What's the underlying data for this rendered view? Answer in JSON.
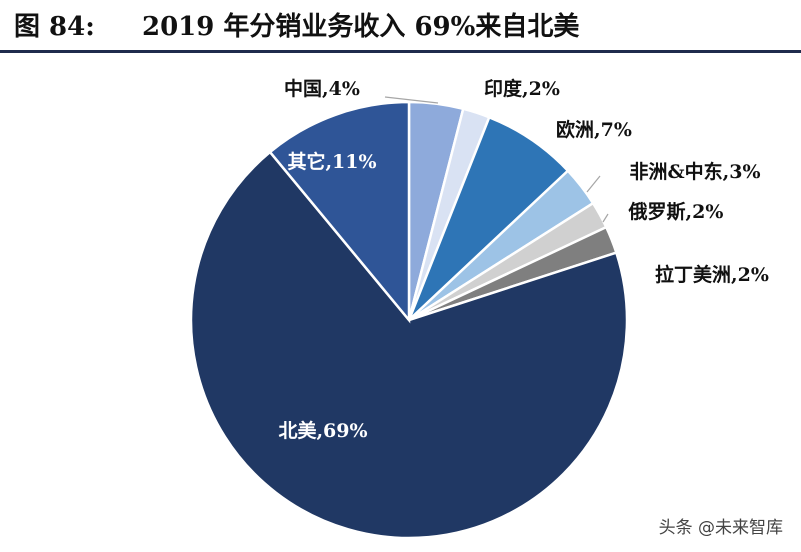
{
  "header": {
    "figure_number": "图 84:",
    "title": "2019 年分销业务收入 69%来自北美"
  },
  "watermark": "头条 @未来智库",
  "colors": {
    "rule": "#1f2b4d"
  },
  "chart_data": {
    "type": "pie",
    "title": "2019 年分销业务收入 69%来自北美",
    "slices": [
      {
        "label": "中国,4%",
        "value": 4,
        "color": "#8eaadb"
      },
      {
        "label": "印度,2%",
        "value": 2,
        "color": "#d9e2f3"
      },
      {
        "label": "欧洲,7%",
        "value": 7,
        "color": "#2e75b6"
      },
      {
        "label": "非洲&中东,3%",
        "value": 3,
        "color": "#9dc3e6"
      },
      {
        "label": "俄罗斯,2%",
        "value": 2,
        "color": "#d0d0d0"
      },
      {
        "label": "拉丁美洲,2%",
        "value": 2,
        "color": "#7f7f7f"
      },
      {
        "label": "北美,69%",
        "value": 69,
        "color": "#203864"
      },
      {
        "label": "其它,11%",
        "value": 11,
        "color": "#2f5597"
      }
    ]
  }
}
